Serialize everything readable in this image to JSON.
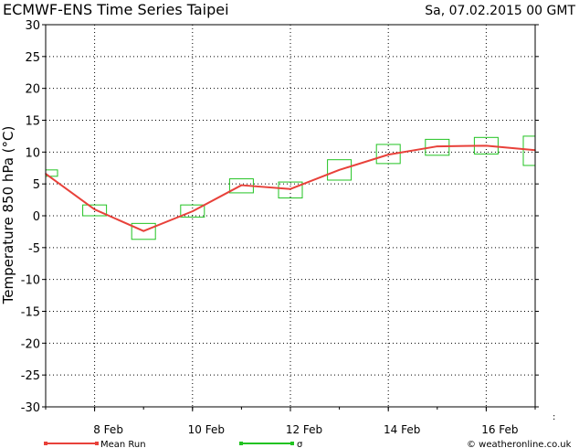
{
  "header": {
    "title": "ECMWF-ENS Time Series Taipei",
    "date": "Sa, 07.02.2015 00 GMT"
  },
  "footer": {
    "credit": "© weatheronline.co.uk"
  },
  "colors": {
    "mean": "#e8413a",
    "sigma": "#22c322",
    "grid": "#000000"
  },
  "chart_data": {
    "type": "line",
    "ylabel": "Temperature 850 hPa (°C)",
    "xlabel": "",
    "ylim": [
      -30,
      30
    ],
    "yticks": [
      30,
      25,
      20,
      15,
      10,
      5,
      0,
      -5,
      -10,
      -15,
      -20,
      -25,
      -30
    ],
    "xlim": [
      0,
      10
    ],
    "xticks": [
      {
        "x": 1,
        "label": "8 Feb"
      },
      {
        "x": 3,
        "label": "10 Feb"
      },
      {
        "x": 5,
        "label": "12 Feb"
      },
      {
        "x": 7,
        "label": "14 Feb"
      },
      {
        "x": 9,
        "label": "16 Feb"
      }
    ],
    "grid": true,
    "legend": "bottom",
    "series": [
      {
        "name": "Mean Run",
        "kind": "line",
        "x": [
          0,
          1,
          2,
          3,
          4,
          5,
          6,
          7,
          8,
          9,
          10
        ],
        "values": [
          6.6,
          1.0,
          -2.4,
          0.7,
          4.8,
          4.2,
          7.2,
          9.6,
          10.9,
          11.0,
          10.3
        ]
      },
      {
        "name": "σ",
        "kind": "box",
        "x": [
          0,
          1,
          2,
          3,
          4,
          5,
          6,
          7,
          8,
          9,
          10
        ],
        "low": [
          6.2,
          0.0,
          -3.7,
          -0.2,
          3.6,
          2.8,
          5.6,
          8.2,
          9.5,
          9.7,
          7.9
        ],
        "high": [
          7.2,
          1.7,
          -1.2,
          1.7,
          5.8,
          5.3,
          8.8,
          11.2,
          12.0,
          12.3,
          12.5
        ]
      }
    ]
  }
}
